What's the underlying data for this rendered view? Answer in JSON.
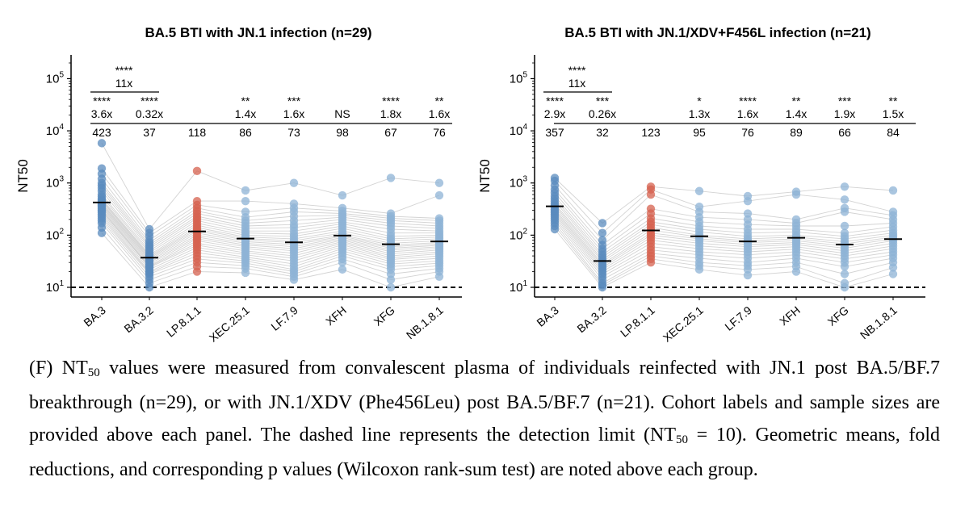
{
  "chart_data": [
    {
      "type": "scatter",
      "title": "BA.5 BTI with JN.1 infection (n=29)",
      "ylabel": "NT50",
      "yscale": "log",
      "ylim": [
        10,
        200000
      ],
      "yticks": [
        10,
        100,
        1000,
        10000,
        100000
      ],
      "ytick_labels": [
        {
          "base": "10",
          "exp": "1"
        },
        {
          "base": "10",
          "exp": "2"
        },
        {
          "base": "10",
          "exp": "3"
        },
        {
          "base": "10",
          "exp": "4"
        },
        {
          "base": "10",
          "exp": "5"
        }
      ],
      "detection_limit": 10,
      "categories": [
        "BA.3",
        "BA.3.2",
        "LP.8.1.1",
        "XEC.25.1",
        "LF.7.9",
        "XFH",
        "XFG",
        "NB.1.8.1"
      ],
      "point_colors": [
        "#5a8bbd",
        "#5a8bbd",
        "#d6624f",
        "#8db3d6",
        "#8db3d6",
        "#8db3d6",
        "#8db3d6",
        "#8db3d6"
      ],
      "geometric_means": [
        423,
        37,
        118,
        86,
        73,
        98,
        67,
        76
      ],
      "fold_changes": [
        "3.6x",
        "0.32x",
        "",
        "1.4x",
        "1.6x",
        "",
        "1.8x",
        "1.6x"
      ],
      "significance": [
        "****",
        "****",
        "",
        "**",
        "***",
        "NS",
        "****",
        "**"
      ],
      "bracket": {
        "from": "BA.3",
        "to": "BA.3.2",
        "stars": "****",
        "fold": "11x"
      },
      "series": [
        {
          "category": "BA.3",
          "values": [
            5800,
            1900,
            1500,
            1200,
            1000,
            900,
            800,
            700,
            600,
            550,
            500,
            470,
            450,
            420,
            400,
            380,
            360,
            340,
            320,
            300,
            290,
            270,
            250,
            230,
            210,
            190,
            170,
            140,
            110
          ]
        },
        {
          "category": "BA.3.2",
          "values": [
            130,
            110,
            95,
            80,
            72,
            65,
            60,
            55,
            50,
            46,
            42,
            40,
            38,
            36,
            34,
            32,
            30,
            28,
            26,
            25,
            24,
            22,
            20,
            19,
            18,
            16,
            14,
            12,
            10
          ]
        },
        {
          "category": "LP.8.1.1",
          "values": [
            1700,
            450,
            380,
            330,
            290,
            260,
            230,
            210,
            190,
            170,
            155,
            140,
            130,
            120,
            110,
            100,
            92,
            85,
            78,
            70,
            64,
            58,
            52,
            46,
            40,
            35,
            30,
            25,
            20
          ]
        },
        {
          "category": "XEC.25.1",
          "values": [
            720,
            450,
            280,
            220,
            190,
            170,
            150,
            135,
            120,
            110,
            100,
            92,
            86,
            80,
            75,
            70,
            65,
            60,
            55,
            50,
            46,
            42,
            38,
            35,
            32,
            29,
            26,
            23,
            19
          ]
        },
        {
          "category": "LF.7.9",
          "values": [
            1000,
            400,
            330,
            280,
            230,
            190,
            160,
            140,
            120,
            105,
            95,
            85,
            78,
            72,
            66,
            60,
            55,
            50,
            45,
            40,
            36,
            32,
            28,
            25,
            22,
            20,
            18,
            16,
            14
          ]
        },
        {
          "category": "XFH",
          "values": [
            580,
            330,
            290,
            260,
            240,
            220,
            200,
            180,
            165,
            150,
            135,
            120,
            110,
            100,
            95,
            90,
            85,
            80,
            75,
            70,
            65,
            60,
            55,
            50,
            45,
            40,
            35,
            30,
            22
          ]
        },
        {
          "category": "XFG",
          "values": [
            1250,
            260,
            230,
            210,
            190,
            170,
            150,
            130,
            110,
            95,
            85,
            78,
            70,
            65,
            60,
            56,
            52,
            48,
            44,
            40,
            37,
            34,
            31,
            28,
            25,
            22,
            18,
            14,
            10
          ]
        },
        {
          "category": "NB.1.8.1",
          "values": [
            1000,
            580,
            210,
            190,
            170,
            150,
            135,
            120,
            110,
            100,
            92,
            85,
            78,
            72,
            68,
            64,
            60,
            56,
            52,
            48,
            44,
            40,
            36,
            32,
            29,
            26,
            23,
            20,
            16
          ]
        }
      ]
    },
    {
      "type": "scatter",
      "title": "BA.5 BTI with JN.1/XDV+F456L infection (n=21)",
      "ylabel": "NT50",
      "yscale": "log",
      "ylim": [
        10,
        200000
      ],
      "yticks": [
        10,
        100,
        1000,
        10000,
        100000
      ],
      "ytick_labels": [
        {
          "base": "10",
          "exp": "1"
        },
        {
          "base": "10",
          "exp": "2"
        },
        {
          "base": "10",
          "exp": "3"
        },
        {
          "base": "10",
          "exp": "4"
        },
        {
          "base": "10",
          "exp": "5"
        }
      ],
      "detection_limit": 10,
      "categories": [
        "BA.3",
        "BA.3.2",
        "LP.8.1.1",
        "XEC.25.1",
        "LF.7.9",
        "XFH",
        "XFG",
        "NB.1.8.1"
      ],
      "point_colors": [
        "#5a8bbd",
        "#5a8bbd",
        "#d6624f",
        "#8db3d6",
        "#8db3d6",
        "#8db3d6",
        "#8db3d6",
        "#8db3d6"
      ],
      "geometric_means": [
        357,
        32,
        123,
        95,
        76,
        89,
        66,
        84
      ],
      "fold_changes": [
        "2.9x",
        "0.26x",
        "",
        "1.3x",
        "1.6x",
        "1.4x",
        "1.9x",
        "1.5x"
      ],
      "significance": [
        "****",
        "***",
        "",
        "*",
        "****",
        "**",
        "***",
        "**"
      ],
      "bracket": {
        "from": "BA.3",
        "to": "BA.3.2",
        "stars": "****",
        "fold": "11x"
      },
      "series": [
        {
          "category": "BA.3",
          "values": [
            1250,
            1100,
            900,
            750,
            650,
            560,
            500,
            450,
            400,
            370,
            340,
            310,
            290,
            270,
            250,
            230,
            210,
            190,
            170,
            150,
            130
          ]
        },
        {
          "category": "BA.3.2",
          "values": [
            170,
            110,
            80,
            65,
            55,
            48,
            42,
            38,
            34,
            31,
            28,
            26,
            24,
            22,
            20,
            18,
            16,
            14,
            12,
            11,
            10
          ]
        },
        {
          "category": "LP.8.1.1",
          "values": [
            850,
            750,
            600,
            320,
            260,
            210,
            180,
            160,
            140,
            125,
            110,
            100,
            90,
            80,
            70,
            60,
            52,
            45,
            40,
            35,
            30
          ]
        },
        {
          "category": "XEC.25.1",
          "values": [
            700,
            350,
            280,
            220,
            180,
            150,
            130,
            115,
            100,
            92,
            85,
            78,
            70,
            62,
            55,
            48,
            42,
            36,
            30,
            26,
            22
          ]
        },
        {
          "category": "LF.7.9",
          "values": [
            560,
            450,
            260,
            200,
            160,
            130,
            110,
            95,
            85,
            78,
            72,
            66,
            60,
            54,
            48,
            42,
            36,
            30,
            26,
            22,
            17
          ]
        },
        {
          "category": "XFH",
          "values": [
            680,
            600,
            200,
            170,
            150,
            130,
            115,
            100,
            92,
            85,
            78,
            72,
            66,
            60,
            54,
            48,
            42,
            36,
            30,
            25,
            20
          ]
        },
        {
          "category": "XFG",
          "values": [
            850,
            480,
            330,
            280,
            150,
            110,
            95,
            85,
            75,
            68,
            62,
            56,
            50,
            45,
            40,
            35,
            30,
            25,
            18,
            12,
            10
          ]
        },
        {
          "category": "NB.1.8.1",
          "values": [
            720,
            280,
            240,
            200,
            170,
            145,
            125,
            110,
            100,
            92,
            85,
            78,
            70,
            62,
            55,
            48,
            42,
            36,
            30,
            24,
            18
          ]
        }
      ]
    }
  ],
  "caption": {
    "part1": "(F) NT",
    "sub1": "50",
    "part2": " values were measured from convalescent plasma of individuals reinfected with JN.1 post BA.5/BF.7 breakthrough (n=29), or with JN.1/XDV (Phe456Leu) post BA.5/BF.7 (n=21). Cohort labels and sample sizes are provided above each panel. The dashed line represents the detection limit (NT",
    "sub2": "50",
    "part3": " = 10). Geometric means, fold reductions, and corresponding p values (Wilcoxon rank-sum test) are noted above each group."
  }
}
